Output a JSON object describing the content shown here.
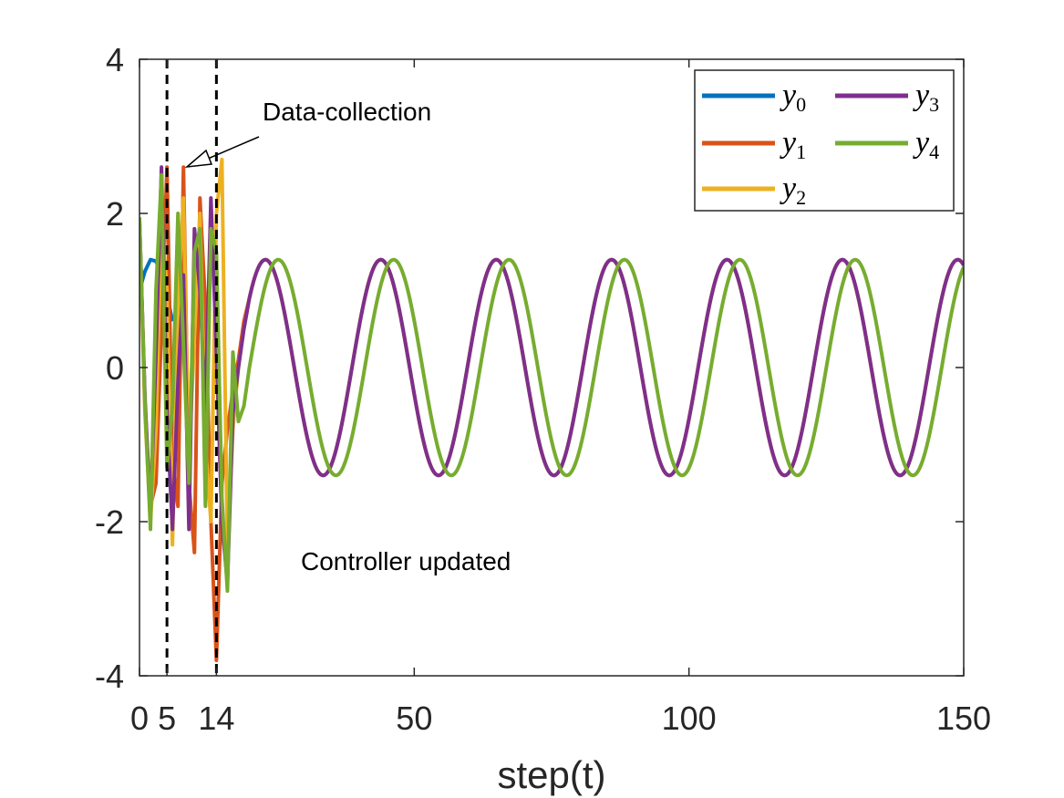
{
  "chart_data": {
    "type": "line",
    "title": "",
    "xlabel": "step(t)",
    "ylabel": "",
    "xlim": [
      0,
      150
    ],
    "ylim": [
      -4,
      4
    ],
    "xticks": [
      0,
      5,
      14,
      50,
      100,
      150
    ],
    "xtick_labels": [
      "0",
      "5",
      "14",
      "50",
      "100",
      "150"
    ],
    "yticks": [
      -4,
      -2,
      0,
      2,
      4
    ],
    "ytick_labels": [
      "-4",
      "-2",
      "0",
      "2",
      "4"
    ],
    "grid": false,
    "legend_position": "top-right",
    "amplitude": 1.4,
    "period": 21,
    "vlines": [
      5,
      14
    ],
    "series": [
      {
        "name": "y",
        "subscript": "0",
        "color": "#0072BD",
        "x": [
          0,
          1,
          2,
          3,
          4,
          5,
          6
        ],
        "y": [
          1.0,
          1.25,
          1.4,
          1.38,
          1.2,
          0.95,
          0.6
        ]
      },
      {
        "name": "y",
        "subscript": "1",
        "color": "#D95319",
        "x": [
          0,
          1,
          2,
          3,
          4,
          5,
          6,
          7,
          8,
          9,
          10,
          11,
          12,
          13,
          14,
          15,
          16,
          17,
          18,
          19,
          20
        ],
        "y": [
          1.9,
          -0.5,
          -1.8,
          -1.5,
          0.5,
          2.6,
          -1.2,
          -1.8,
          2.6,
          -1.5,
          -2.4,
          2.2,
          0.8,
          -2.0,
          -3.8,
          -1.5,
          -0.8,
          -0.3,
          0.1,
          0.6,
          0.9
        ]
      },
      {
        "name": "y",
        "subscript": "2",
        "color": "#EDB120",
        "x": [
          0,
          1,
          2,
          3,
          4,
          5,
          6,
          7,
          8,
          9,
          10,
          11,
          12,
          13,
          14,
          15,
          16,
          17,
          18,
          19,
          20
        ],
        "y": [
          1.8,
          -0.6,
          -2.0,
          -0.8,
          2.0,
          1.0,
          -2.3,
          0.8,
          2.2,
          -1.2,
          0.4,
          2.0,
          -1.0,
          -2.0,
          2.0,
          2.7,
          -2.4,
          -0.8,
          0.0,
          0.5,
          0.9
        ]
      },
      {
        "name": "y",
        "subscript": "3",
        "color": "#7E2F8E",
        "x": [
          0,
          1,
          2,
          3,
          4,
          5,
          6,
          7,
          8,
          9,
          10,
          11,
          12,
          13,
          14,
          15,
          16,
          17,
          18,
          19,
          20
        ],
        "y": [
          1.9,
          -0.4,
          -1.9,
          0.2,
          2.6,
          -0.6,
          -2.1,
          -0.2,
          1.2,
          -2.1,
          1.8,
          1.0,
          -0.6,
          2.2,
          0.2,
          -2.0,
          -2.8,
          -0.6,
          0.0,
          0.5,
          0.9
        ]
      },
      {
        "name": "y",
        "subscript": "4",
        "color": "#77AC30",
        "x": [
          0,
          1,
          2,
          3,
          4,
          5,
          6,
          7,
          8,
          9,
          10,
          11,
          12,
          13,
          14,
          15,
          16,
          17,
          18,
          19,
          20
        ],
        "y": [
          1.95,
          -0.5,
          -2.1,
          1.0,
          2.5,
          -1.3,
          -0.5,
          2.0,
          0.3,
          -1.5,
          1.5,
          1.8,
          -1.8,
          1.8,
          1.5,
          -1.7,
          -2.9,
          0.2,
          -0.7,
          -0.5,
          0.0
        ]
      }
    ],
    "annotations": [
      {
        "text": "Data-collection",
        "arrow": true,
        "target_x": 8.5,
        "target_y": 2.65
      },
      {
        "text": "Controller updated",
        "arrow": false
      }
    ]
  }
}
